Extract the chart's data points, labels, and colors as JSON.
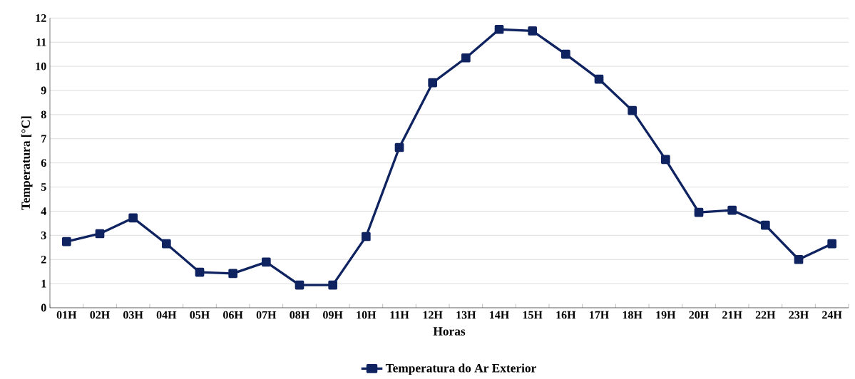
{
  "chart_data": {
    "type": "line",
    "xlabel": "Horas",
    "ylabel": "Temperatura [°C]",
    "categories": [
      "01H",
      "02H",
      "03H",
      "04H",
      "05H",
      "06H",
      "07H",
      "08H",
      "09H",
      "10H",
      "11H",
      "12H",
      "13H",
      "14H",
      "15H",
      "16H",
      "17H",
      "18H",
      "19H",
      "20H",
      "21H",
      "22H",
      "23H",
      "24H"
    ],
    "series": [
      {
        "name": "Temperatura do Ar Exterior",
        "color": "#0f2360",
        "values": [
          2.74,
          3.07,
          3.72,
          2.65,
          1.47,
          1.42,
          1.89,
          0.94,
          0.94,
          2.95,
          6.64,
          9.32,
          10.35,
          11.53,
          11.47,
          10.5,
          9.47,
          8.17,
          6.14,
          3.95,
          4.04,
          3.42,
          2.0,
          2.65
        ]
      }
    ],
    "ylim": [
      0,
      12
    ],
    "yticks": [
      0,
      1,
      2,
      3,
      4,
      5,
      6,
      7,
      8,
      9,
      10,
      11,
      12
    ],
    "grid": "y",
    "legend": "bottom",
    "marker": "square",
    "line_style": "solid"
  }
}
